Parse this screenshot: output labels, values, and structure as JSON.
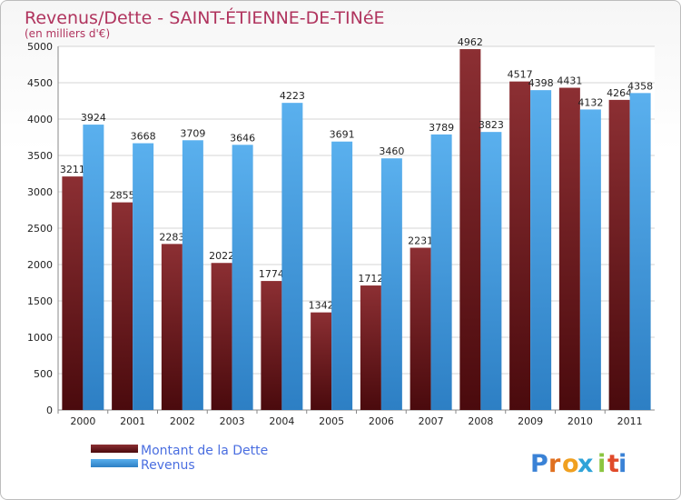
{
  "chart_data": {
    "type": "bar",
    "title": "Revenus/Dette - SAINT-ÉTIENNE-DE-TINéE",
    "subtitle": "(en milliers d'€)",
    "categories": [
      "2000",
      "2001",
      "2002",
      "2003",
      "2004",
      "2005",
      "2006",
      "2007",
      "2008",
      "2009",
      "2010",
      "2011"
    ],
    "series": [
      {
        "name": "Montant de la Dette",
        "values": [
          3211,
          2855,
          2283,
          2022,
          1774,
          1342,
          1712,
          2231,
          4962,
          4517,
          4431,
          4264
        ],
        "labels": [
          "3211",
          "2855",
          "2283",
          "2022",
          "1774",
          "1342",
          "1712",
          "2231",
          "4962",
          "4517",
          "4431",
          "4264"
        ],
        "color": "#7a1f24"
      },
      {
        "name": "Revenus",
        "values": [
          3924,
          3668,
          3709,
          3646,
          4223,
          3691,
          3460,
          3789,
          3823,
          4398,
          4132,
          4358
        ],
        "labels": [
          "3924",
          "3668",
          "3709",
          "3646",
          "4223",
          "3691",
          "3460",
          "3789",
          "3823",
          "4398",
          "4132",
          "4358"
        ],
        "color": "#4aa3e6"
      }
    ],
    "ylim": [
      0,
      5000
    ],
    "yticks": [
      0,
      500,
      1000,
      1500,
      2000,
      2500,
      3000,
      3500,
      4000,
      4500,
      5000
    ],
    "ytick_labels": [
      "0",
      "500",
      "1000",
      "1500",
      "2000",
      "2500",
      "3000",
      "3500",
      "4000",
      "4500",
      "5000"
    ],
    "grid": true,
    "legend_position": "bottom-left"
  },
  "branding": {
    "text": "Proxiti",
    "letters": [
      "P",
      "r",
      "o",
      "x",
      "i",
      "t",
      "i"
    ]
  }
}
